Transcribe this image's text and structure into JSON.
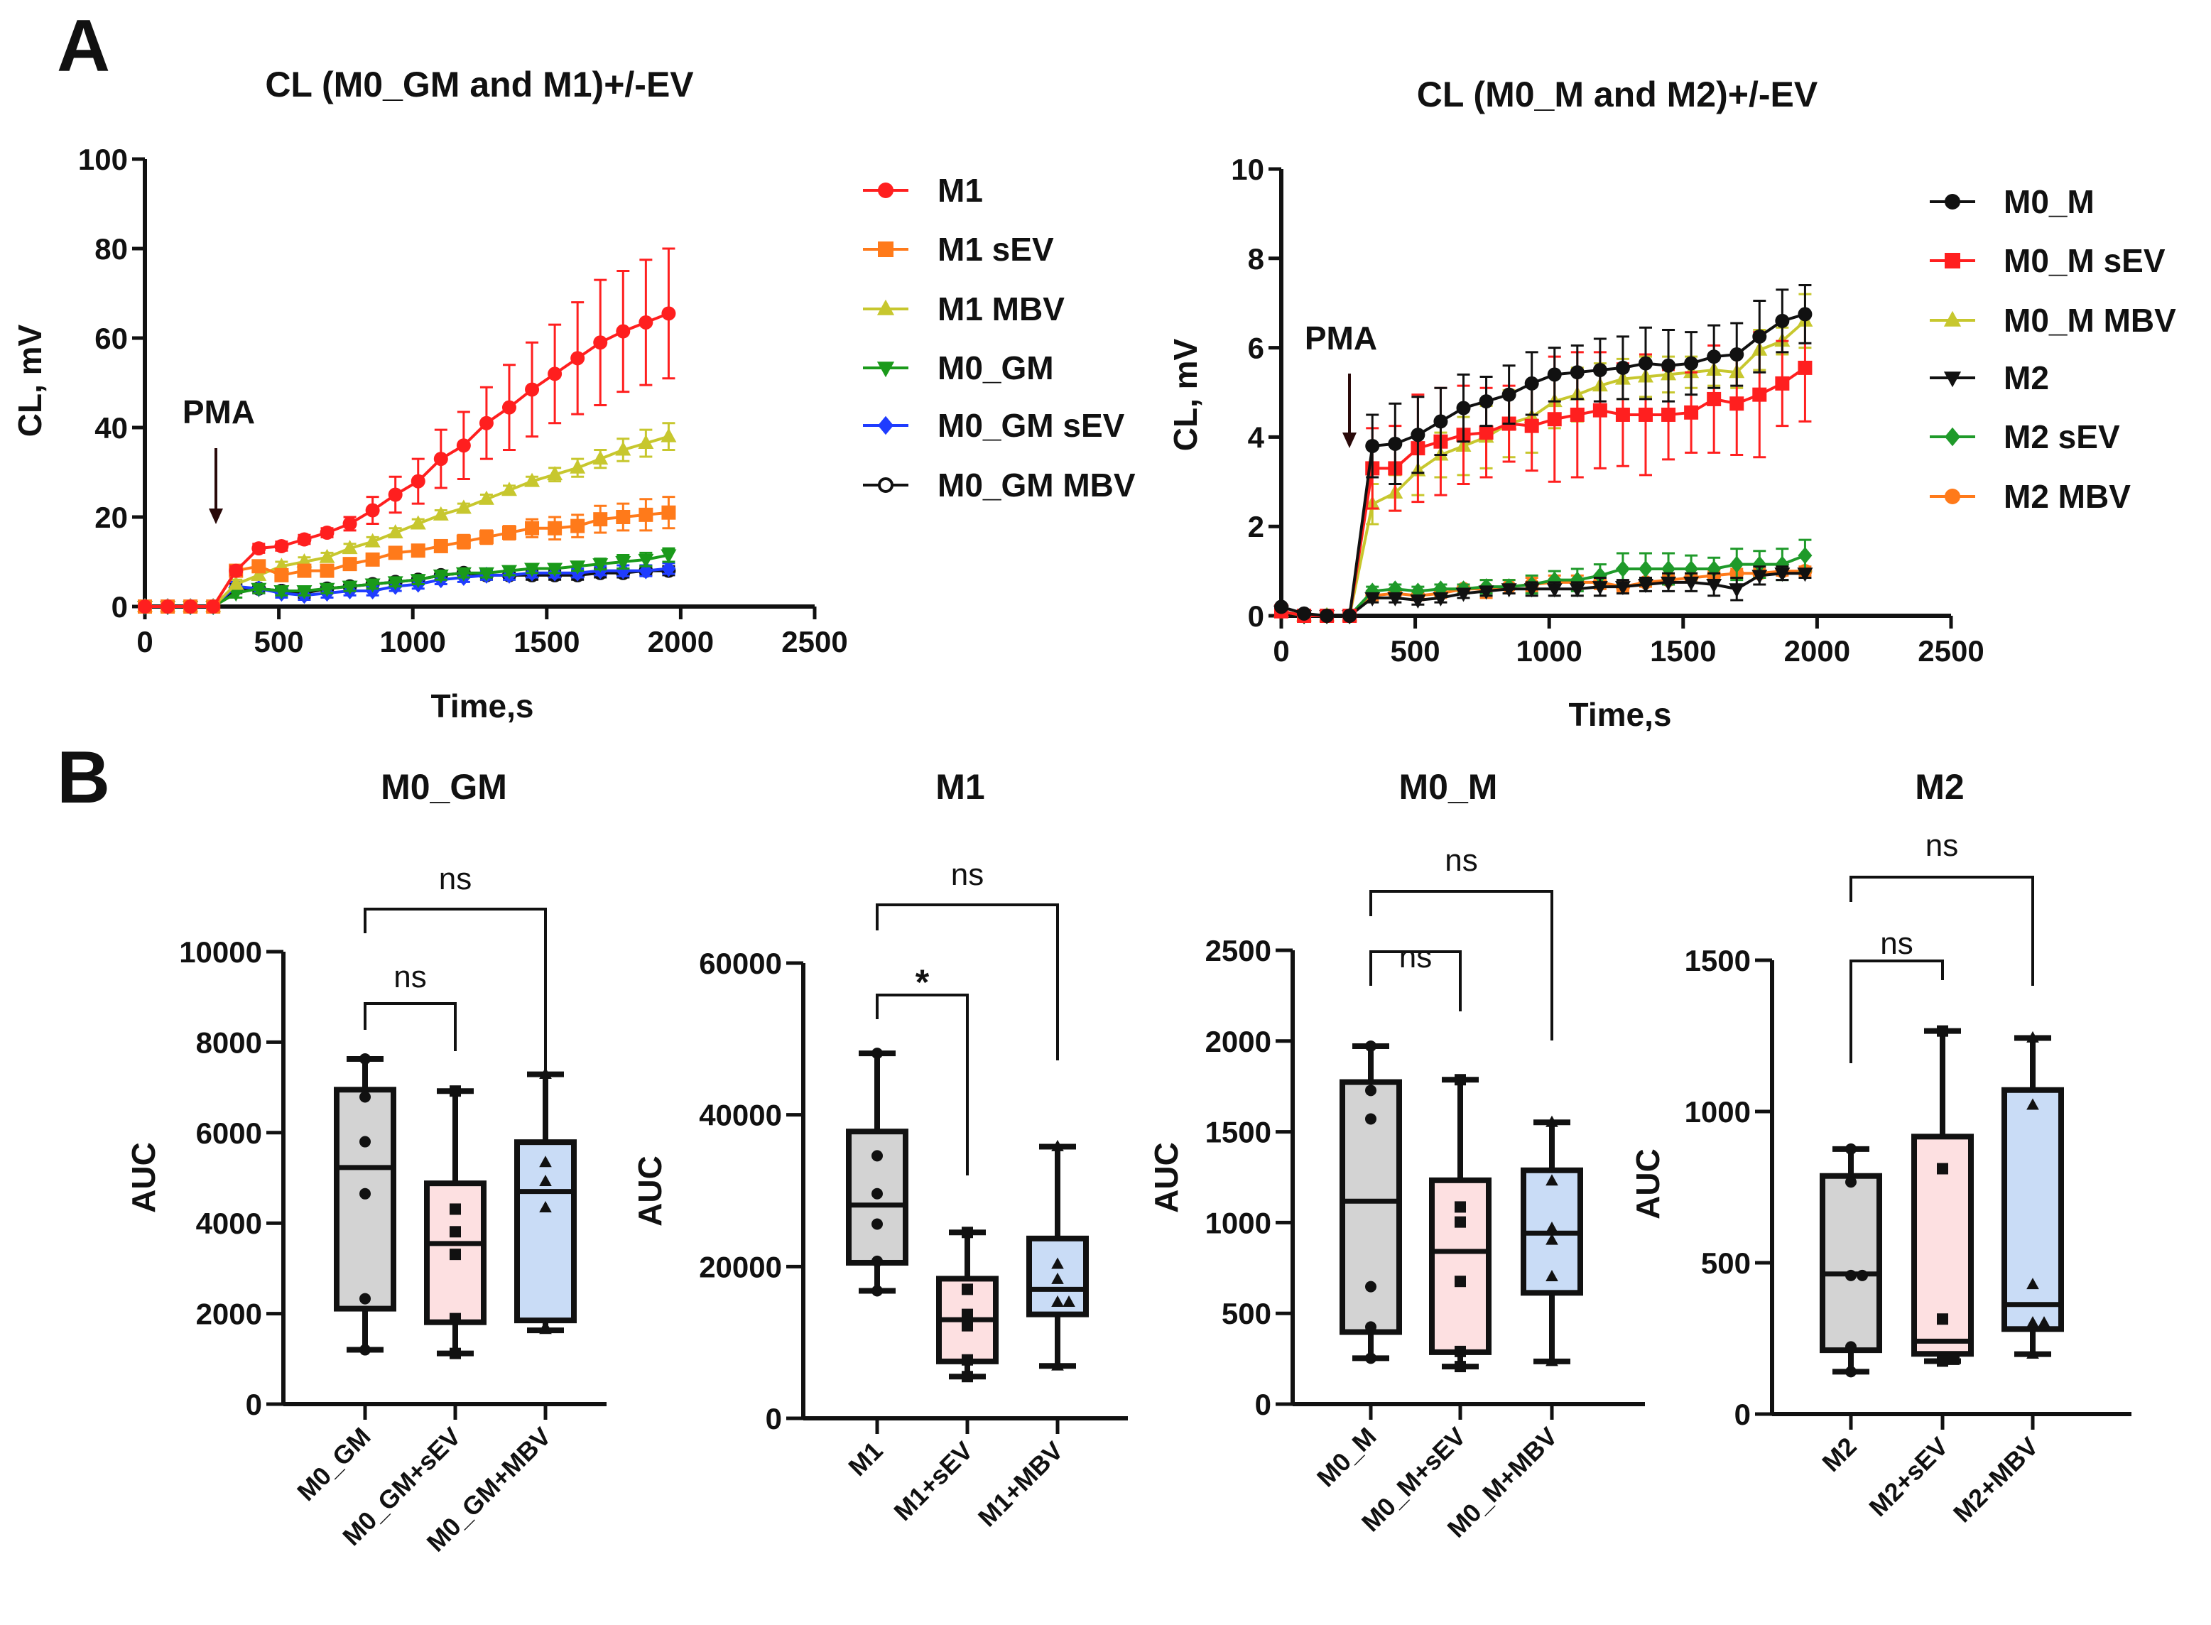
{
  "panel_letters": [
    "A",
    "B"
  ],
  "chart_data": [
    {
      "type": "line",
      "title": "CL (M0_GM and M1)+/-EV",
      "xlabel": "Time,s",
      "ylabel": "CL, mV",
      "xlim": [
        0,
        2500
      ],
      "ylim": [
        0,
        100
      ],
      "xticks": [
        0,
        500,
        1000,
        1500,
        2000,
        2500
      ],
      "yticks": [
        0,
        20,
        40,
        60,
        80,
        100
      ],
      "annotation": {
        "label": "PMA",
        "x": 255
      },
      "legend_position": "right",
      "x": [
        0,
        85,
        170,
        255,
        340,
        425,
        510,
        595,
        680,
        765,
        850,
        935,
        1020,
        1105,
        1190,
        1275,
        1360,
        1445,
        1530,
        1615,
        1700,
        1785,
        1870,
        1955
      ],
      "series": [
        {
          "name": "M1",
          "color": "#ff1f1f",
          "marker": "circle",
          "values": [
            0,
            0,
            0,
            0,
            8,
            13,
            13.5,
            15,
            16.5,
            18.5,
            21.5,
            25,
            28,
            33,
            36,
            41,
            44.5,
            48.5,
            52,
            55.5,
            59,
            61.5,
            63.5,
            65.5
          ],
          "error": [
            0,
            0,
            0,
            0,
            1,
            1,
            1,
            1,
            1,
            1.5,
            3,
            4,
            5,
            6.5,
            7.5,
            8,
            9.5,
            10.5,
            11,
            12.5,
            14,
            13.5,
            14,
            14.5
          ]
        },
        {
          "name": "M1 sEV",
          "color": "#ff7a1a",
          "marker": "square",
          "values": [
            0,
            0,
            0,
            0,
            8,
            9,
            7,
            8,
            8,
            9.5,
            10.5,
            12,
            12.5,
            13.5,
            14.5,
            15.5,
            16.5,
            17.5,
            17.5,
            18,
            19.5,
            20,
            20.5,
            21
          ],
          "error": [
            0,
            0,
            0,
            0,
            1,
            1,
            1,
            1,
            1,
            1,
            1,
            1,
            1,
            1.2,
            1.5,
            1.5,
            1.5,
            2,
            2.5,
            2.5,
            3,
            3,
            3.5,
            3.5
          ]
        },
        {
          "name": "M1 MBV",
          "color": "#c7c72e",
          "marker": "triangle",
          "values": [
            0,
            0,
            0,
            0,
            5,
            7,
            9,
            10,
            11,
            13,
            14.5,
            16.5,
            18.5,
            20.5,
            22,
            24,
            26,
            28,
            29.5,
            31,
            33,
            35,
            36.5,
            38
          ],
          "error": [
            0,
            0,
            0,
            0,
            1,
            1,
            1,
            1,
            1,
            1,
            1,
            1,
            1,
            1,
            1,
            1,
            1,
            1,
            1.5,
            2,
            2,
            2.5,
            3,
            3
          ]
        },
        {
          "name": "M0_GM",
          "color": "#1a9a1a",
          "marker": "triangle-down",
          "values": [
            0,
            0,
            0,
            0,
            3,
            4,
            3.5,
            3.5,
            4,
            4.5,
            5,
            5.5,
            6,
            7,
            7.5,
            7.5,
            8,
            8.5,
            8.5,
            9,
            9.5,
            10,
            10.5,
            11.5
          ],
          "error": [
            0,
            0,
            0,
            0,
            1,
            1,
            1,
            1,
            1,
            1,
            1,
            1,
            1,
            1,
            1,
            1,
            1,
            1,
            1,
            1,
            1.2,
            1.5,
            1.5,
            1.5
          ]
        },
        {
          "name": "M0_GM sEV",
          "color": "#1f3cff",
          "marker": "diamond",
          "values": [
            0,
            0,
            0,
            0,
            4.5,
            4,
            3,
            2.5,
            3,
            3.5,
            3.5,
            4.5,
            5,
            6,
            6.5,
            7,
            7,
            7.5,
            7.5,
            7.5,
            8,
            8,
            8,
            8.5
          ],
          "error": [
            0,
            0,
            0,
            0,
            1,
            1,
            1,
            1,
            1,
            1,
            1,
            1,
            1,
            1,
            1,
            1,
            1,
            1,
            1,
            1,
            1,
            1.2,
            1.2,
            1.2
          ]
        },
        {
          "name": "M0_GM MBV",
          "color": "#111111",
          "marker": "open-circle",
          "values": [
            0,
            0,
            0,
            0,
            4,
            4,
            3.5,
            3,
            4,
            4.5,
            5,
            5.5,
            6,
            7,
            7.5,
            7,
            7,
            7,
            7,
            7,
            7.5,
            7.5,
            8,
            8
          ],
          "error": [
            0,
            0,
            0,
            0,
            1,
            1,
            1,
            1,
            1,
            1,
            1,
            1,
            1,
            1,
            1,
            1,
            1,
            1,
            1,
            1,
            1,
            1,
            1,
            1
          ]
        }
      ]
    },
    {
      "type": "line",
      "title": "CL (M0_M and M2)+/-EV",
      "xlabel": "Time,s",
      "ylabel": "CL, mV",
      "xlim": [
        0,
        2500
      ],
      "ylim": [
        0,
        10
      ],
      "xticks": [
        0,
        500,
        1000,
        1500,
        2000,
        2500
      ],
      "yticks": [
        0,
        2,
        4,
        6,
        8,
        10
      ],
      "annotation": {
        "label": "PMA",
        "x": 255
      },
      "legend_position": "right",
      "x": [
        0,
        85,
        170,
        255,
        340,
        425,
        510,
        595,
        680,
        765,
        850,
        935,
        1020,
        1105,
        1190,
        1275,
        1360,
        1445,
        1530,
        1615,
        1700,
        1785,
        1870,
        1955
      ],
      "series": [
        {
          "name": "M0_M",
          "color": "#111111",
          "marker": "circle",
          "values": [
            0.2,
            0.05,
            0,
            0,
            3.8,
            3.85,
            4.05,
            4.35,
            4.65,
            4.8,
            4.95,
            5.2,
            5.4,
            5.45,
            5.5,
            5.55,
            5.65,
            5.6,
            5.65,
            5.8,
            5.85,
            6.25,
            6.6,
            6.75
          ],
          "error": [
            0.05,
            0,
            0,
            0,
            0.7,
            0.9,
            0.85,
            0.75,
            0.75,
            0.55,
            0.65,
            0.7,
            0.6,
            0.6,
            0.7,
            0.7,
            0.8,
            0.8,
            0.7,
            0.7,
            0.7,
            0.8,
            0.7,
            0.65
          ]
        },
        {
          "name": "M0_M sEV",
          "color": "#ff1f1f",
          "marker": "square",
          "values": [
            0.1,
            0,
            0,
            0,
            3.3,
            3.3,
            3.75,
            3.9,
            4.05,
            4.1,
            4.3,
            4.25,
            4.4,
            4.5,
            4.6,
            4.5,
            4.5,
            4.5,
            4.55,
            4.85,
            4.75,
            4.95,
            5.2,
            5.55
          ],
          "error": [
            0,
            0,
            0,
            0,
            0.9,
            0.95,
            1.2,
            1.2,
            1.1,
            1,
            0.85,
            1,
            1.4,
            1.4,
            1.3,
            1.15,
            1.35,
            1,
            0.9,
            1.2,
            1.15,
            1.4,
            0.95,
            1.2
          ]
        },
        {
          "name": "M0_M MBV",
          "color": "#c7c72e",
          "marker": "triangle",
          "values": [
            0.1,
            0,
            0,
            0,
            2.5,
            2.75,
            3.25,
            3.6,
            3.8,
            4.0,
            4.3,
            4.45,
            4.8,
            4.95,
            5.15,
            5.3,
            5.35,
            5.4,
            5.45,
            5.5,
            5.45,
            5.95,
            6.15,
            6.6
          ],
          "error": [
            0,
            0,
            0,
            0,
            0.45,
            0.4,
            0.55,
            0.5,
            0.65,
            0.7,
            0.75,
            0.8,
            0.6,
            0.6,
            0.5,
            0.45,
            0.45,
            0.4,
            0.35,
            0.35,
            0.35,
            0.45,
            0.3,
            0.6
          ]
        },
        {
          "name": "M2",
          "color": "#111111",
          "marker": "triangle-down",
          "values": [
            0.1,
            0,
            0,
            0,
            0.4,
            0.4,
            0.35,
            0.4,
            0.5,
            0.55,
            0.6,
            0.6,
            0.6,
            0.6,
            0.65,
            0.65,
            0.7,
            0.75,
            0.75,
            0.7,
            0.6,
            0.9,
            0.95,
            0.95
          ],
          "error": [
            0,
            0,
            0,
            0,
            0.1,
            0.1,
            0.1,
            0.1,
            0.1,
            0.1,
            0.1,
            0.15,
            0.15,
            0.15,
            0.2,
            0.15,
            0.15,
            0.2,
            0.2,
            0.25,
            0.25,
            0.2,
            0.15,
            0.1
          ]
        },
        {
          "name": "M2 sEV",
          "color": "#1f9a2a",
          "marker": "diamond",
          "values": [
            0.1,
            0,
            0,
            0,
            0.55,
            0.6,
            0.55,
            0.6,
            0.6,
            0.65,
            0.65,
            0.7,
            0.8,
            0.8,
            0.9,
            1.05,
            1.05,
            1.05,
            1.05,
            1.05,
            1.15,
            1.15,
            1.15,
            1.35
          ],
          "error": [
            0,
            0,
            0,
            0,
            0.1,
            0.1,
            0.1,
            0.1,
            0.1,
            0.15,
            0.15,
            0.2,
            0.2,
            0.25,
            0.25,
            0.35,
            0.35,
            0.35,
            0.3,
            0.25,
            0.35,
            0.3,
            0.35,
            0.35
          ]
        },
        {
          "name": "M2 MBV",
          "color": "#ff7a1a",
          "marker": "circle",
          "values": [
            0.1,
            0,
            0,
            0,
            0.45,
            0.5,
            0.45,
            0.5,
            0.6,
            0.6,
            0.65,
            0.7,
            0.75,
            0.75,
            0.75,
            0.65,
            0.75,
            0.8,
            0.85,
            0.9,
            0.95,
            0.95,
            1.0,
            1.0
          ],
          "error": [
            0,
            0,
            0,
            0,
            0.1,
            0.1,
            0.1,
            0.1,
            0.1,
            0.2,
            0.15,
            0.15,
            0.15,
            0.15,
            0.15,
            0.1,
            0.1,
            0.1,
            0.1,
            0.1,
            0.1,
            0.1,
            0.1,
            0.1
          ]
        }
      ]
    },
    {
      "type": "box",
      "title": "M0_GM",
      "ylabel": "AUC",
      "ylim": [
        0,
        10000
      ],
      "yticks": [
        0,
        2000,
        4000,
        6000,
        8000,
        10000
      ],
      "categories": [
        "M0_GM",
        "M0_GM+sEV",
        "M0_GM+MBV"
      ],
      "boxes": [
        {
          "min": 1200,
          "q1": 2110,
          "median": 5230,
          "q3": 6950,
          "max": 7630,
          "points": [
            7630,
            6790,
            5800,
            4650,
            2330,
            1200
          ]
        },
        {
          "min": 1120,
          "q1": 1810,
          "median": 3550,
          "q3": 4880,
          "max": 6920,
          "points": [
            6920,
            4310,
            3810,
            3310,
            1890,
            1120
          ]
        },
        {
          "min": 1630,
          "q1": 1850,
          "median": 4700,
          "q3": 5790,
          "max": 7290,
          "points": [
            7290,
            5340,
            4920,
            4340,
            1700,
            1650
          ]
        }
      ],
      "comparisons": [
        {
          "pair": [
            0,
            1
          ],
          "label": "ns"
        },
        {
          "pair": [
            0,
            2
          ],
          "label": "ns"
        }
      ]
    },
    {
      "type": "box",
      "title": "M1",
      "ylabel": "AUC",
      "ylim": [
        0,
        60000
      ],
      "yticks": [
        0,
        20000,
        40000,
        60000
      ],
      "categories": [
        "M1",
        "M1+sEV",
        "M1+MBV"
      ],
      "boxes": [
        {
          "min": 16800,
          "q1": 20500,
          "median": 28100,
          "q3": 37800,
          "max": 48100,
          "points": [
            48100,
            34600,
            29600,
            25600,
            20700,
            16800
          ]
        },
        {
          "min": 5500,
          "q1": 7500,
          "median": 13000,
          "q3": 18400,
          "max": 24500,
          "points": [
            24500,
            17000,
            13700,
            12200,
            7700,
            5500
          ]
        },
        {
          "min": 6900,
          "q1": 13700,
          "median": 17000,
          "q3": 23700,
          "max": 35800,
          "points": [
            35800,
            20300,
            18300,
            15300,
            15300,
            6900
          ]
        }
      ],
      "comparisons": [
        {
          "pair": [
            0,
            1
          ],
          "label": "*"
        },
        {
          "pair": [
            0,
            2
          ],
          "label": "ns"
        }
      ]
    },
    {
      "type": "box",
      "title": "M0_M",
      "ylabel": "AUC",
      "ylim": [
        0,
        2500
      ],
      "yticks": [
        0,
        500,
        1000,
        1500,
        2000,
        2500
      ],
      "categories": [
        "M0_M",
        "M0_M+sEV",
        "M0_M+MBV"
      ],
      "boxes": [
        {
          "min": 253,
          "q1": 397,
          "median": 1118,
          "q3": 1774,
          "max": 1972,
          "points": [
            1972,
            1728,
            1571,
            647,
            425,
            253
          ]
        },
        {
          "min": 207,
          "q1": 286,
          "median": 841,
          "q3": 1233,
          "max": 1787,
          "points": [
            1787,
            1086,
            1003,
            676,
            290,
            207
          ]
        },
        {
          "min": 235,
          "q1": 613,
          "median": 942,
          "q3": 1288,
          "max": 1552,
          "points": [
            1552,
            1229,
            968,
            903,
            702,
            235
          ]
        }
      ],
      "comparisons": [
        {
          "pair": [
            0,
            1
          ],
          "label": "ns"
        },
        {
          "pair": [
            0,
            2
          ],
          "label": "ns"
        }
      ]
    },
    {
      "type": "box",
      "title": "M2",
      "ylabel": "AUC",
      "ylim": [
        0,
        1500
      ],
      "yticks": [
        0,
        500,
        1000,
        1500
      ],
      "categories": [
        "M2",
        "M2+sEV",
        "M2+MBV"
      ],
      "boxes": [
        {
          "min": 140,
          "q1": 211,
          "median": 463,
          "q3": 787,
          "max": 876,
          "points": [
            876,
            767,
            458,
            458,
            222,
            140
          ]
        },
        {
          "min": 175,
          "q1": 199,
          "median": 241,
          "q3": 917,
          "max": 1266,
          "points": [
            1266,
            811,
            314,
            181,
            181,
            175
          ]
        },
        {
          "min": 198,
          "q1": 281,
          "median": 362,
          "q3": 1071,
          "max": 1243,
          "points": [
            1243,
            1021,
            428,
            301,
            301,
            198
          ]
        }
      ],
      "comparisons": [
        {
          "pair": [
            0,
            1
          ],
          "label": "ns"
        },
        {
          "pair": [
            0,
            2
          ],
          "label": "ns"
        }
      ]
    }
  ],
  "box_colors": [
    "#d3d3d3",
    "#fde0e1",
    "#c9dcf6"
  ]
}
